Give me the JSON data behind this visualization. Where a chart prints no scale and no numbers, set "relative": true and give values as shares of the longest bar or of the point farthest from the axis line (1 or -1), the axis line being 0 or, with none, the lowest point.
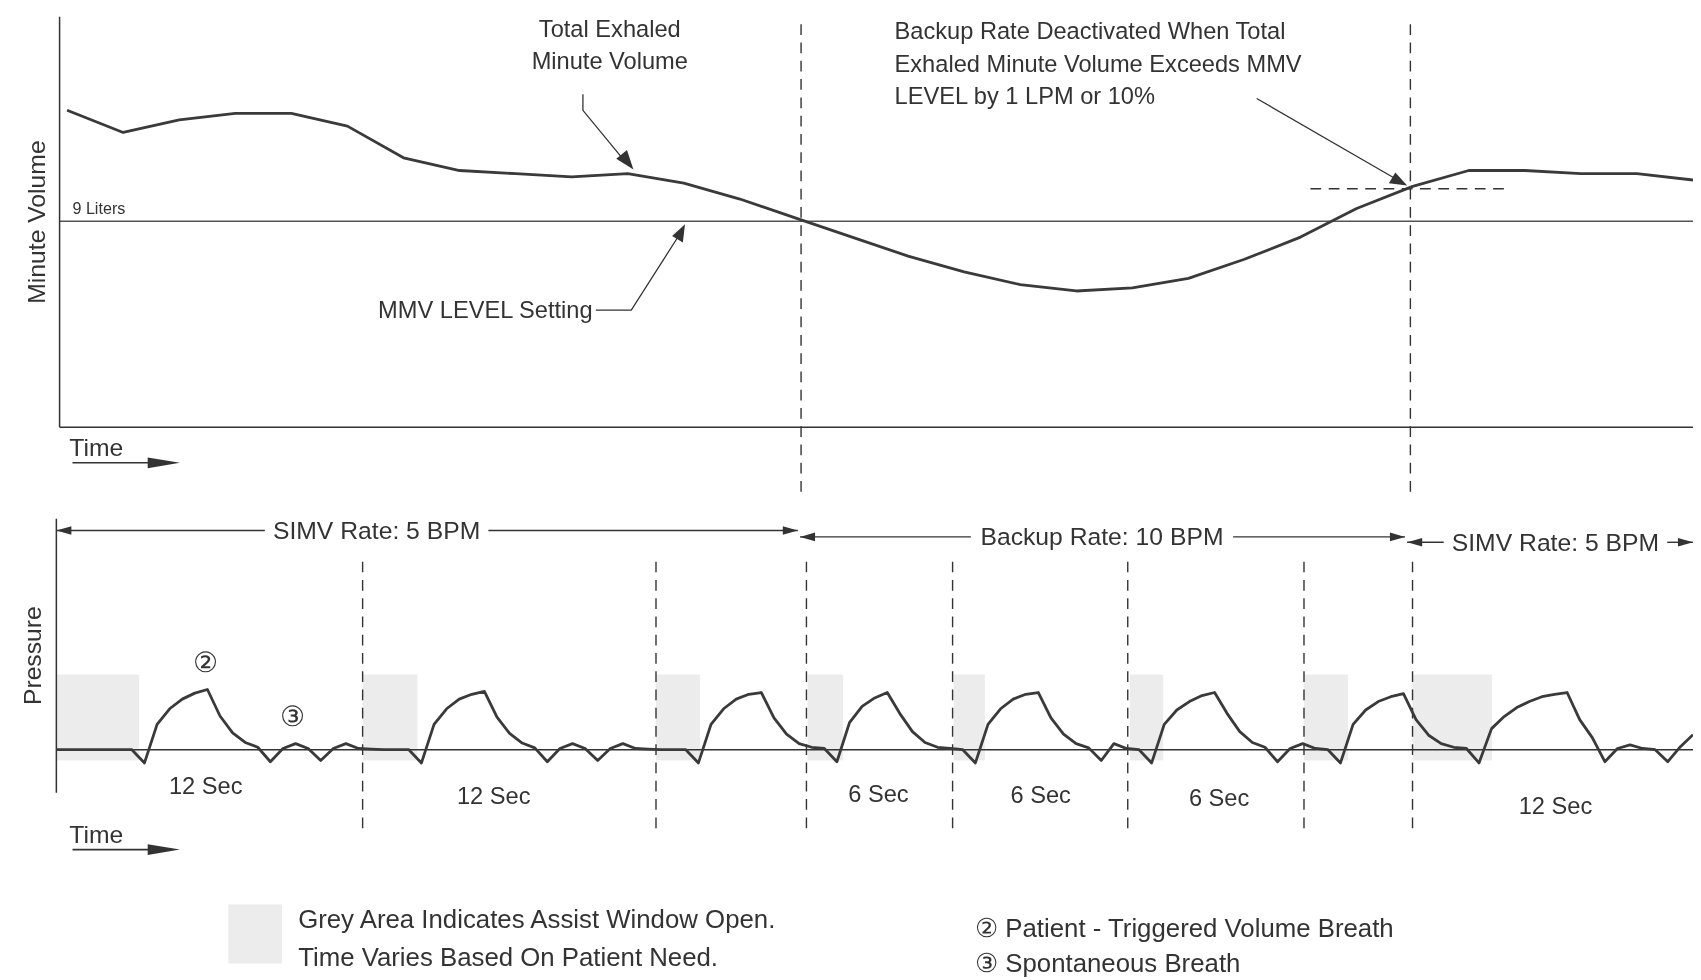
{
  "chart_data": [
    {
      "type": "line",
      "relative": true,
      "ylabel": "Minute Volume",
      "xlabel": "Time",
      "line_style": "solid",
      "categories": [
        null,
        null,
        null,
        null,
        null,
        null,
        null,
        null,
        null,
        null,
        null,
        null,
        null,
        null,
        null,
        null,
        null,
        null,
        null,
        null,
        null,
        null,
        null,
        null,
        null,
        null,
        null,
        null,
        null,
        null
      ],
      "series": [
        {
          "color": "#3a3a3a",
          "values": [
            1,
            0.93,
            0.97,
            0.99,
            0.99,
            0.95,
            0.85,
            0.81,
            0.8,
            0.79,
            0.8,
            0.77,
            0.72,
            0.66,
            0.6,
            0.54,
            0.49,
            0.45,
            0.43,
            0.44,
            0.47,
            0.53,
            0.6,
            0.69,
            0.76,
            0.81,
            0.81,
            0.8,
            0.8,
            0.78
          ]
        }
      ],
      "ref_lines": [
        {
          "axis": "y",
          "value": 0.65,
          "label": "9 Liters",
          "color": "#555555",
          "line_style": "solid"
        }
      ],
      "annotations": [
        "Total Exhaled Minute Volume",
        "MMV LEVEL Setting",
        "Backup Rate Deactivated When Total Exhaled Minute Volume Exceeds MMV LEVEL by 1 LPM or 10%"
      ]
    },
    {
      "type": "line",
      "relative": true,
      "ylabel": "Pressure",
      "xlabel": "Time",
      "line_style": "solid",
      "categories": [
        null,
        null,
        null,
        null,
        null,
        null,
        null,
        null,
        null,
        null,
        null,
        null,
        null,
        null,
        null,
        null,
        null,
        null,
        null,
        null,
        null,
        null,
        null,
        null,
        null,
        null,
        null,
        null,
        null,
        null,
        null,
        null,
        null,
        null,
        null,
        null,
        null,
        null,
        null,
        null,
        null,
        null,
        null,
        null,
        null,
        null,
        null,
        null,
        null,
        null,
        null,
        null,
        null,
        null,
        null,
        null,
        null,
        null,
        null,
        null,
        null,
        null,
        null,
        null,
        null,
        null,
        null,
        null,
        null,
        null,
        null,
        null,
        null,
        null,
        null,
        null,
        null,
        null,
        null,
        null,
        null,
        null,
        null,
        null,
        null,
        null,
        null,
        null,
        null,
        null,
        null,
        null,
        null,
        null,
        null,
        null,
        null,
        null,
        null,
        null,
        null,
        null,
        null,
        null,
        null,
        null,
        null,
        null,
        null,
        null,
        null,
        null,
        null,
        null,
        null,
        null,
        null,
        null,
        null,
        null,
        null,
        null,
        null,
        null,
        null,
        null,
        null,
        null,
        null,
        null,
        null
      ],
      "series": [
        {
          "color": "#3a3a3a",
          "values": [
            0,
            0,
            0,
            0,
            0,
            0,
            0,
            -0.22,
            0.42,
            0.68,
            0.84,
            0.94,
            1,
            0.56,
            0.28,
            0.12,
            0.04,
            -0.2,
            0.02,
            0.1,
            0.02,
            -0.18,
            0.02,
            0.1,
            0.02,
            0.01,
            0,
            0,
            0,
            -0.22,
            0.42,
            0.68,
            0.84,
            0.92,
            0.97,
            0.54,
            0.27,
            0.11,
            0.03,
            -0.2,
            0.02,
            0.1,
            0.02,
            -0.18,
            0.02,
            0.1,
            0.02,
            0.01,
            0,
            0,
            0,
            -0.22,
            0.42,
            0.68,
            0.84,
            0.92,
            0.95,
            0.53,
            0.26,
            0.1,
            0.04,
            0.02,
            -0.2,
            0.45,
            0.72,
            0.86,
            0.95,
            0.6,
            0.3,
            0.12,
            0.04,
            0.02,
            0,
            -0.22,
            0.42,
            0.68,
            0.84,
            0.92,
            0.95,
            0.53,
            0.26,
            0.1,
            0.03,
            -0.18,
            0.1,
            0.02,
            0,
            -0.22,
            0.42,
            0.66,
            0.8,
            0.9,
            0.95,
            0.6,
            0.3,
            0.12,
            0.04,
            -0.2,
            0.02,
            0.1,
            0.02,
            0,
            -0.22,
            0.42,
            0.66,
            0.8,
            0.88,
            0.93,
            0.5,
            0.24,
            0.1,
            0.04,
            0.02,
            -0.22,
            0.35,
            0.55,
            0.7,
            0.8,
            0.88,
            0.92,
            0.95,
            0.5,
            0.2,
            -0.2,
            0.02,
            0.08,
            0.02,
            0,
            -0.2,
            0.05,
            0.25
          ]
        }
      ],
      "annotations": [
        "SIMV Rate: 5 BPM",
        "Backup Rate: 10 BPM",
        "SIMV Rate: 5 BPM",
        "12 Sec",
        "12 Sec",
        "6 Sec",
        "6 Sec",
        "6 Sec",
        "12 Sec",
        "②",
        "③",
        "Grey Area Indicates Assist Window Open.",
        "Time Varies Based On Patient Need.",
        "② Patient - Triggered Volume Breath",
        "③ Spontaneous Breath"
      ]
    }
  ]
}
